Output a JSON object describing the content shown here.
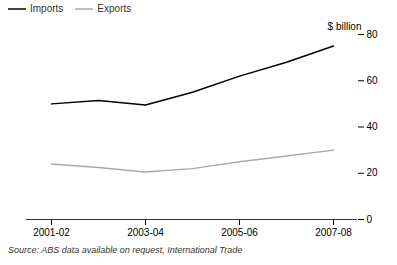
{
  "chart_data": {
    "type": "line",
    "categories": [
      "2001-02",
      null,
      "2003-04",
      null,
      "2005-06",
      null,
      "2007-08"
    ],
    "series": [
      {
        "name": "Imports",
        "color": "#000000",
        "values": [
          50.0,
          51.5,
          49.5,
          55.0,
          62.0,
          68.0,
          75.0
        ]
      },
      {
        "name": "Exports",
        "color": "#aaaaaa",
        "values": [
          24.0,
          22.5,
          20.5,
          22.0,
          25.0,
          27.5,
          30.0
        ]
      }
    ],
    "ylabel": "$ billion",
    "ylim": [
      0,
      80
    ],
    "yticks": [
      0,
      20,
      40,
      60,
      80
    ],
    "annotations": [
      "Source: ABS data available on request, International Trade"
    ],
    "legend": "upper left",
    "grid": false
  }
}
